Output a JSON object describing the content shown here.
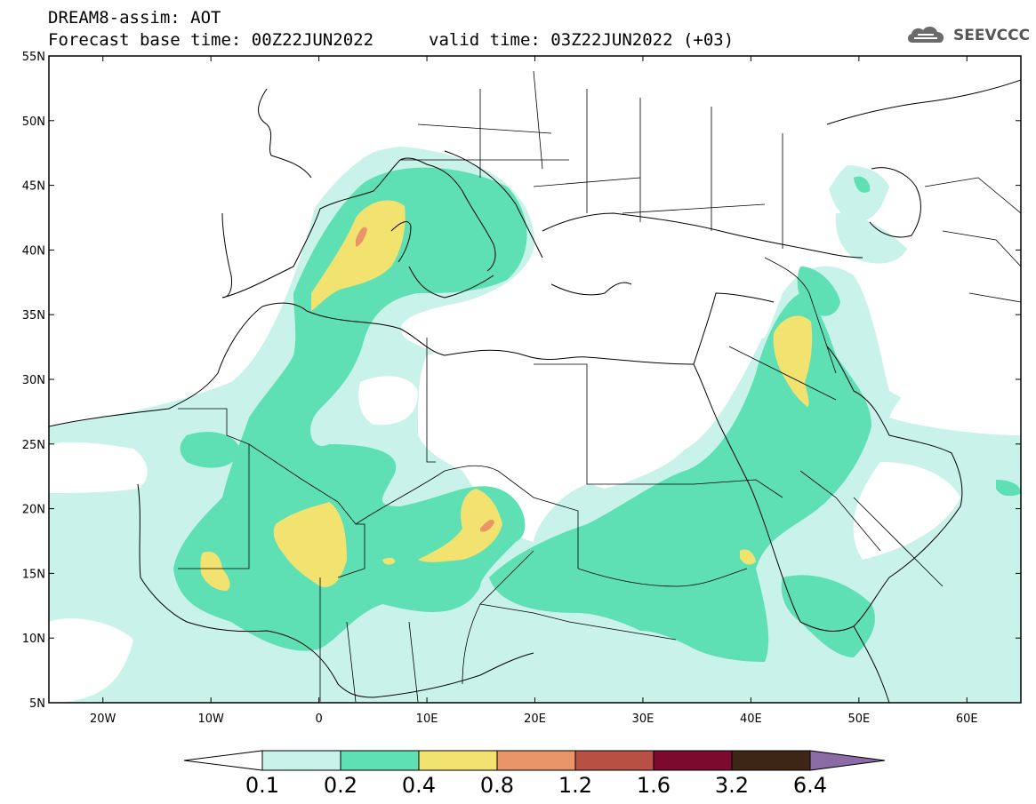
{
  "header": {
    "title": "DREAM8-assim: AOT",
    "base_time": "Forecast base time: 00Z22JUN2022",
    "valid_time": "valid time: 03Z22JUN2022 (+03)"
  },
  "logo": {
    "text": "SEEVCCC",
    "icon": "cloud-logo-icon"
  },
  "map": {
    "lon_range": [
      -25,
      65
    ],
    "lat_range": [
      5,
      55
    ],
    "lat_ticks": [
      "5N",
      "10N",
      "15N",
      "20N",
      "25N",
      "30N",
      "35N",
      "40N",
      "45N",
      "50N",
      "55N"
    ],
    "lon_ticks": [
      "20W",
      "10W",
      "0",
      "10E",
      "20E",
      "30E",
      "40E",
      "50E",
      "60E"
    ],
    "colors": {
      "0.1-0.2": "#c8f2ea",
      "0.2-0.4": "#5ee0b4",
      "0.4-0.8": "#f2e370",
      "0.8-1.2": "#e99469",
      "1.2-1.6": "#b65143",
      "1.6-3.2": "#7c0a2e",
      "3.2-6.4": "#3e2616",
      "6.4+": "#8c6aa6"
    }
  },
  "colorbar": {
    "labels": [
      "0.1",
      "0.2",
      "0.4",
      "0.8",
      "1.2",
      "1.6",
      "3.2",
      "6.4"
    ],
    "colors": [
      "#c8f2ea",
      "#5ee0b4",
      "#f2e370",
      "#e99469",
      "#b65143",
      "#7c0a2e",
      "#3e2616"
    ],
    "low_arrow": "#ffffff",
    "high_arrow": "#8c6aa6"
  }
}
